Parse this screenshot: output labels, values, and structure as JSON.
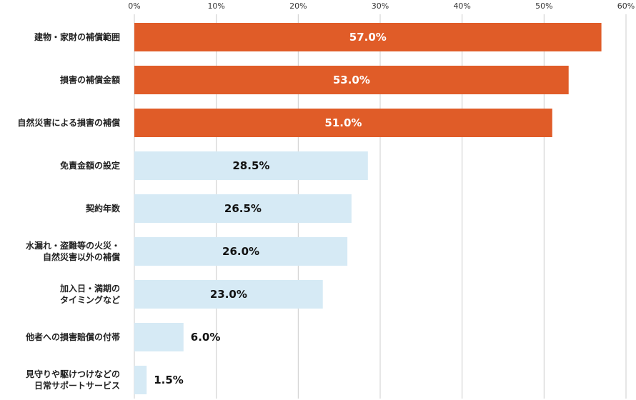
{
  "chart_data": {
    "type": "bar",
    "orientation": "horizontal",
    "title": "",
    "xlabel": "",
    "ylabel": "",
    "xlim": [
      0,
      60
    ],
    "ticks": [
      "0%",
      "10%",
      "20%",
      "30%",
      "40%",
      "50%",
      "60%"
    ],
    "grid": true,
    "legend": "none",
    "value_suffix": "%",
    "highlight_color": "#e05c28",
    "base_color": "#d6eaf5",
    "categories": [
      {
        "label": [
          "建物・家財の補償範囲"
        ],
        "value": 57.0,
        "highlight": true
      },
      {
        "label": [
          "損害の補償金額"
        ],
        "value": 53.0,
        "highlight": true
      },
      {
        "label": [
          "自然災害による損害の補償"
        ],
        "value": 51.0,
        "highlight": true
      },
      {
        "label": [
          "免責金額の設定"
        ],
        "value": 28.5,
        "highlight": false
      },
      {
        "label": [
          "契約年数"
        ],
        "value": 26.5,
        "highlight": false
      },
      {
        "label": [
          "水漏れ・盗難等の火災・",
          "自然災害以外の補償"
        ],
        "value": 26.0,
        "highlight": false
      },
      {
        "label": [
          "加入日・満期の",
          "タイミングなど"
        ],
        "value": 23.0,
        "highlight": false
      },
      {
        "label": [
          "他者への損害賠償の付帯"
        ],
        "value": 6.0,
        "highlight": false
      },
      {
        "label": [
          "見守りや駆けつけなどの",
          "日常サポートサービス"
        ],
        "value": 1.5,
        "highlight": false
      }
    ]
  }
}
